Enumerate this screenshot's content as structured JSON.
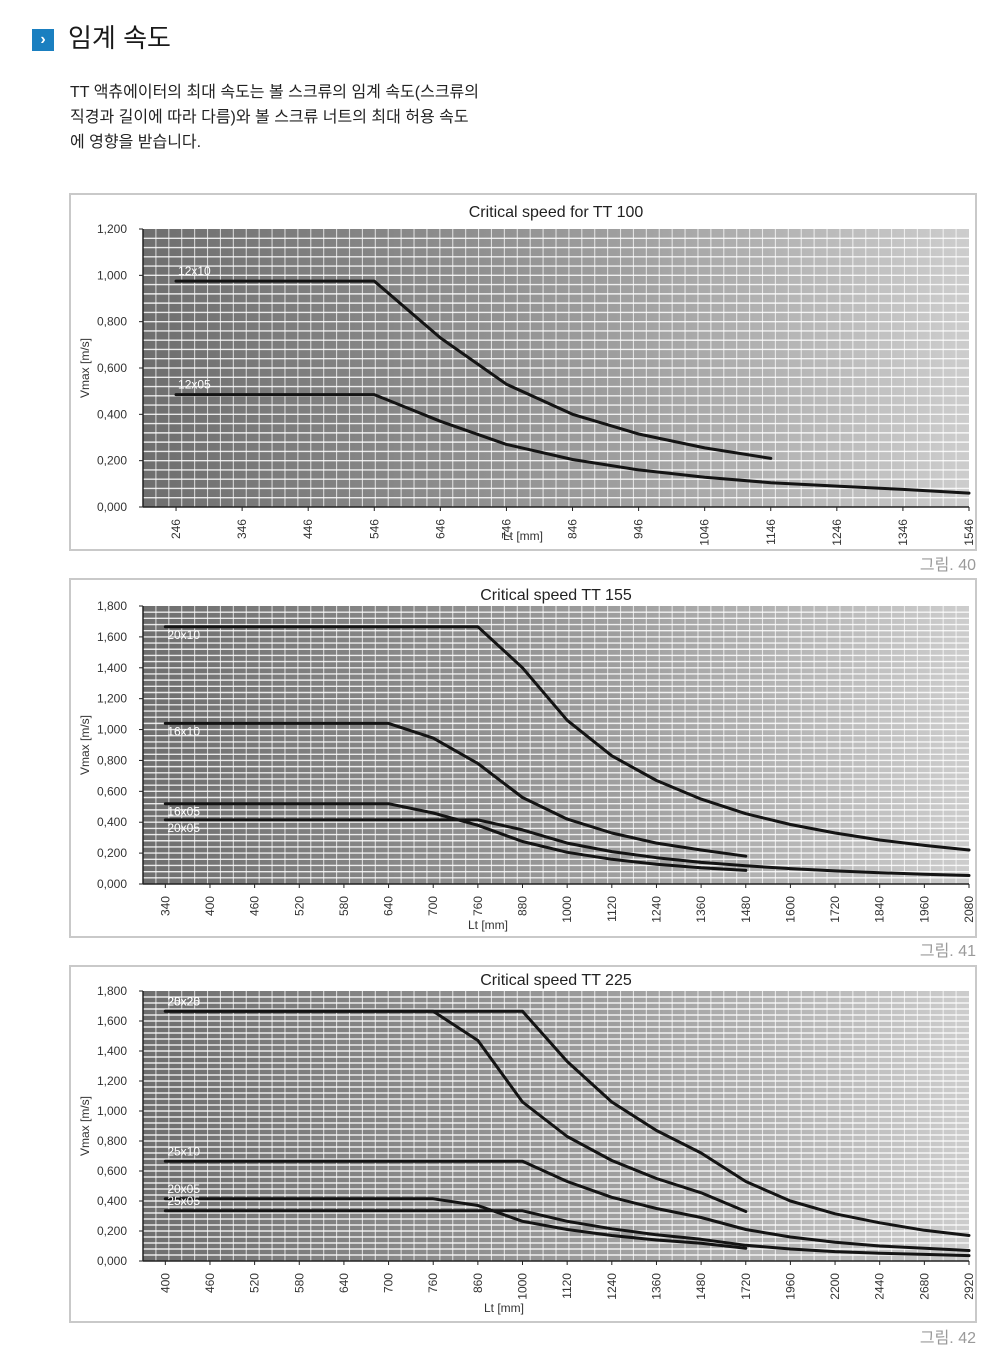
{
  "header": {
    "title": "임계 속도",
    "icon": "chevron-right-icon",
    "icon_color": "#1a7fc0"
  },
  "intro": {
    "lines": [
      "TT 액츄에이터의 최대 속도는 볼 스크류의 임계 속도(스크류의",
      "직경과 길이에 따라 다름)와  볼 스크류 너트의 최대 허용 속도",
      "에 영향을 받습니다."
    ]
  },
  "figures": [
    "그림. 40",
    "그림. 41",
    "그림. 42"
  ],
  "chart_data": [
    {
      "type": "line",
      "title": "Critical speed for TT 100",
      "xlabel": "Lt [mm]",
      "ylabel": "Vmax [m/s]",
      "ylim": [
        0,
        1.2
      ],
      "yticks": [
        "0,000",
        "0,200",
        "0,400",
        "0,600",
        "0,800",
        "1,000",
        "1,200"
      ],
      "xticks": [
        "246",
        "346",
        "446",
        "546",
        "646",
        "746",
        "846",
        "946",
        "1046",
        "1146",
        "1246",
        "1346",
        "1546"
      ],
      "grid": true,
      "series": [
        {
          "name": "12x10",
          "points": [
            [
              0,
              0.975
            ],
            [
              3,
              0.975
            ],
            [
              4,
              0.73
            ],
            [
              5,
              0.53
            ],
            [
              6,
              0.4
            ],
            [
              7,
              0.315
            ],
            [
              8,
              0.255
            ],
            [
              9,
              0.21
            ]
          ]
        },
        {
          "name": "12x05",
          "points": [
            [
              0,
              0.485
            ],
            [
              3,
              0.485
            ],
            [
              4,
              0.37
            ],
            [
              5,
              0.27
            ],
            [
              6,
              0.205
            ],
            [
              7,
              0.16
            ],
            [
              8,
              0.128
            ],
            [
              9,
              0.105
            ],
            [
              10,
              0.09
            ],
            [
              11,
              0.076
            ],
            [
              12,
              0.06
            ]
          ]
        }
      ]
    },
    {
      "type": "line",
      "title": "Critical speed TT 155",
      "xlabel": "Lt [mm]",
      "ylabel": "Vmax [m/s]",
      "ylim": [
        0,
        1.8
      ],
      "yticks": [
        "0,000",
        "0,200",
        "0,400",
        "0,600",
        "0,800",
        "1,000",
        "1,200",
        "1,400",
        "1,600",
        "1,800"
      ],
      "xticks": [
        "340",
        "400",
        "460",
        "520",
        "580",
        "640",
        "700",
        "760",
        "880",
        "1000",
        "1120",
        "1240",
        "1360",
        "1480",
        "1600",
        "1720",
        "1840",
        "1960",
        "2080"
      ],
      "grid": true,
      "series": [
        {
          "name": "20x10",
          "points": [
            [
              0,
              1.665
            ],
            [
              7,
              1.665
            ],
            [
              8,
              1.4
            ],
            [
              9,
              1.06
            ],
            [
              10,
              0.83
            ],
            [
              11,
              0.67
            ],
            [
              12,
              0.55
            ],
            [
              13,
              0.455
            ],
            [
              14,
              0.385
            ],
            [
              15,
              0.33
            ],
            [
              16,
              0.285
            ],
            [
              17,
              0.25
            ],
            [
              18,
              0.22
            ]
          ]
        },
        {
          "name": "16x10",
          "points": [
            [
              0,
              1.04
            ],
            [
              5,
              1.04
            ],
            [
              6,
              0.945
            ],
            [
              7,
              0.78
            ],
            [
              8,
              0.56
            ],
            [
              9,
              0.42
            ],
            [
              10,
              0.33
            ],
            [
              11,
              0.265
            ],
            [
              12,
              0.22
            ],
            [
              13,
              0.18
            ]
          ]
        },
        {
          "name": "16x05",
          "points": [
            [
              0,
              0.52
            ],
            [
              5,
              0.52
            ],
            [
              6,
              0.46
            ],
            [
              7,
              0.38
            ],
            [
              8,
              0.275
            ],
            [
              9,
              0.205
            ],
            [
              10,
              0.16
            ],
            [
              11,
              0.128
            ],
            [
              12,
              0.105
            ],
            [
              13,
              0.088
            ]
          ]
        },
        {
          "name": "20x05",
          "points": [
            [
              0,
              0.415
            ],
            [
              7,
              0.415
            ],
            [
              8,
              0.35
            ],
            [
              9,
              0.265
            ],
            [
              10,
              0.21
            ],
            [
              11,
              0.17
            ],
            [
              12,
              0.14
            ],
            [
              13,
              0.118
            ],
            [
              14,
              0.1
            ],
            [
              15,
              0.085
            ],
            [
              16,
              0.073
            ],
            [
              17,
              0.063
            ],
            [
              18,
              0.055
            ]
          ]
        }
      ]
    },
    {
      "type": "line",
      "title": "Critical speed TT 225",
      "xlabel": "Lt [mm]",
      "ylabel": "Vmax [m/s]",
      "ylim": [
        0,
        1.8
      ],
      "yticks": [
        "0,000",
        "0,200",
        "0,400",
        "0,600",
        "0,800",
        "1,000",
        "1,200",
        "1,400",
        "1,600",
        "1,800"
      ],
      "xticks": [
        "400",
        "460",
        "520",
        "580",
        "640",
        "700",
        "760",
        "860",
        "1000",
        "1120",
        "1240",
        "1360",
        "1480",
        "1720",
        "1960",
        "2200",
        "2440",
        "2680",
        "2920"
      ],
      "grid": true,
      "series": [
        {
          "name": "25x25",
          "points": [
            [
              0,
              1.665
            ],
            [
              8,
              1.665
            ],
            [
              9,
              1.33
            ],
            [
              10,
              1.06
            ],
            [
              11,
              0.87
            ],
            [
              12,
              0.72
            ],
            [
              13,
              0.53
            ],
            [
              14,
              0.4
            ],
            [
              15,
              0.315
            ],
            [
              16,
              0.255
            ],
            [
              17,
              0.205
            ],
            [
              18,
              0.17
            ]
          ]
        },
        {
          "name": "20x20",
          "points": [
            [
              0,
              1.665
            ],
            [
              6,
              1.665
            ],
            [
              7,
              1.47
            ],
            [
              8,
              1.06
            ],
            [
              9,
              0.83
            ],
            [
              10,
              0.67
            ],
            [
              11,
              0.55
            ],
            [
              12,
              0.455
            ],
            [
              13,
              0.33
            ]
          ]
        },
        {
          "name": "25x10",
          "points": [
            [
              0,
              0.665
            ],
            [
              8,
              0.665
            ],
            [
              9,
              0.53
            ],
            [
              10,
              0.425
            ],
            [
              11,
              0.35
            ],
            [
              12,
              0.29
            ],
            [
              13,
              0.21
            ],
            [
              14,
              0.16
            ],
            [
              15,
              0.125
            ],
            [
              16,
              0.1
            ],
            [
              17,
              0.085
            ],
            [
              18,
              0.07
            ]
          ]
        },
        {
          "name": "20x05",
          "points": [
            [
              0,
              0.415
            ],
            [
              6,
              0.415
            ],
            [
              7,
              0.37
            ],
            [
              8,
              0.265
            ],
            [
              9,
              0.21
            ],
            [
              10,
              0.17
            ],
            [
              11,
              0.14
            ],
            [
              12,
              0.118
            ],
            [
              13,
              0.085
            ]
          ]
        },
        {
          "name": "25x05",
          "points": [
            [
              0,
              0.335
            ],
            [
              8,
              0.335
            ],
            [
              9,
              0.265
            ],
            [
              10,
              0.215
            ],
            [
              11,
              0.175
            ],
            [
              12,
              0.145
            ],
            [
              13,
              0.105
            ],
            [
              14,
              0.08
            ],
            [
              15,
              0.063
            ],
            [
              16,
              0.052
            ],
            [
              17,
              0.044
            ],
            [
              18,
              0.036
            ]
          ]
        }
      ]
    }
  ]
}
